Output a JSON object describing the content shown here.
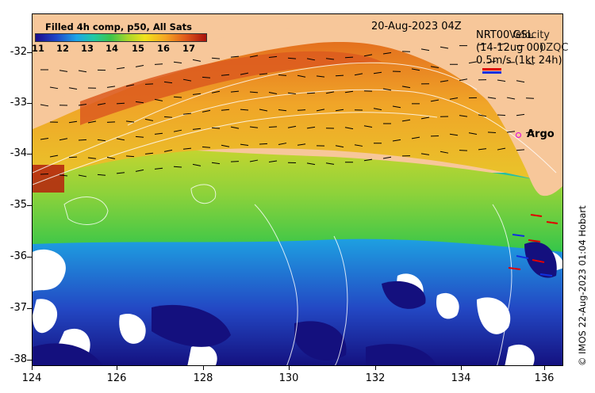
{
  "colorbar": {
    "title": "Filled 4h comp, p50, All Sats",
    "labels": [
      "11",
      "12",
      "13",
      "14",
      "15",
      "16",
      "17"
    ]
  },
  "date": "20-Aug-2023 04Z",
  "velocity_legend": {
    "title_overlay_a": "NRT00 GSL",
    "title_overlay_b": "Velocity",
    "date_overlay_a": "(14-12ug 00)",
    "date_overlay_b": "0ZQC",
    "scale": "0.5m/s (1kt 24h)",
    "arrow_colors": [
      "#e00000",
      "#1030e0"
    ]
  },
  "argo_label": "Argo",
  "credit": "© IMOS 22-Aug-2023 01:04 Hobart",
  "axes": {
    "y_ticks": [
      "-32",
      "-33",
      "-34",
      "-35",
      "-36",
      "-37",
      "-38"
    ],
    "x_ticks": [
      "124",
      "126",
      "128",
      "130",
      "132",
      "134",
      "136"
    ]
  },
  "colors": {
    "land": "#f7c79a",
    "missing": "#ffffff",
    "argo": "#e000e0"
  }
}
